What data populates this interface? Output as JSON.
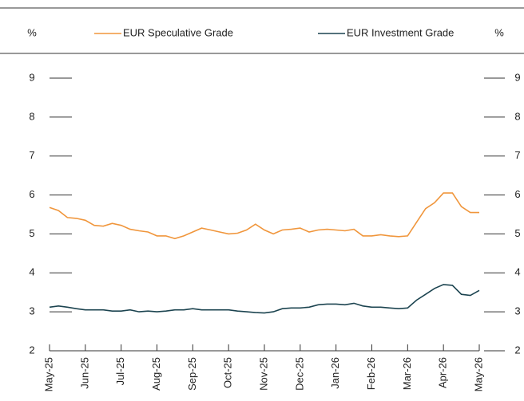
{
  "chart_data": {
    "type": "line",
    "ylabel": "%",
    "y2label": "%",
    "x": [
      0,
      0.25,
      0.5,
      0.75,
      1,
      1.25,
      1.5,
      1.75,
      2,
      2.25,
      2.5,
      2.75,
      3,
      3.25,
      3.5,
      3.75,
      4,
      4.25,
      4.5,
      4.75,
      5,
      5.25,
      5.5,
      5.75,
      6,
      6.25,
      6.5,
      6.75,
      7,
      7.25,
      7.5,
      7.75,
      8,
      8.25,
      8.5,
      8.75,
      9,
      9.25,
      9.5,
      9.75,
      10,
      10.25,
      10.5,
      10.75,
      11,
      11.25,
      11.5,
      11.75,
      12
    ],
    "xlim": [
      0,
      12
    ],
    "xticks": [
      {
        "value": 0,
        "label": "May-25"
      },
      {
        "value": 1,
        "label": "Jun-25"
      },
      {
        "value": 2,
        "label": "Jul-25"
      },
      {
        "value": 3,
        "label": "Aug-25"
      },
      {
        "value": 4,
        "label": "Sep-25"
      },
      {
        "value": 5,
        "label": "Oct-25"
      },
      {
        "value": 6,
        "label": "Nov-25"
      },
      {
        "value": 7,
        "label": "Dec-25"
      },
      {
        "value": 8,
        "label": "Jan-26"
      },
      {
        "value": 9,
        "label": "Feb-26"
      },
      {
        "value": 10,
        "label": "Mar-26"
      },
      {
        "value": 11,
        "label": "Apr-26"
      },
      {
        "value": 12,
        "label": "May-26"
      }
    ],
    "ylim": [
      2,
      9
    ],
    "yticks": [
      2,
      3,
      4,
      5,
      6,
      7,
      8,
      9
    ],
    "y2lim": [
      2,
      9
    ],
    "y2ticks": [
      2,
      3,
      4,
      5,
      6,
      7,
      8,
      9
    ],
    "series": [
      {
        "name": "EUR Speculative Grade",
        "color": "#f0963c",
        "values": [
          5.68,
          5.6,
          5.42,
          5.4,
          5.35,
          5.22,
          5.2,
          5.27,
          5.22,
          5.12,
          5.08,
          5.05,
          4.95,
          4.95,
          4.88,
          4.95,
          5.05,
          5.15,
          5.1,
          5.05,
          5.0,
          5.02,
          5.1,
          5.25,
          5.1,
          5.0,
          5.1,
          5.12,
          5.15,
          5.05,
          5.1,
          5.12,
          5.1,
          5.08,
          5.12,
          4.95,
          4.95,
          4.98,
          4.95,
          4.93,
          4.95,
          5.3,
          5.65,
          5.8,
          6.05,
          6.05,
          5.7,
          5.55,
          5.55
        ]
      },
      {
        "name": "EUR Investment Grade",
        "color": "#1c4450",
        "values": [
          3.12,
          3.15,
          3.12,
          3.08,
          3.05,
          3.05,
          3.05,
          3.02,
          3.02,
          3.05,
          3.0,
          3.02,
          3.0,
          3.02,
          3.05,
          3.05,
          3.08,
          3.05,
          3.05,
          3.05,
          3.05,
          3.02,
          3.0,
          2.98,
          2.97,
          3.0,
          3.08,
          3.1,
          3.1,
          3.12,
          3.18,
          3.2,
          3.2,
          3.18,
          3.22,
          3.15,
          3.12,
          3.12,
          3.1,
          3.08,
          3.1,
          3.3,
          3.45,
          3.6,
          3.7,
          3.68,
          3.45,
          3.42,
          3.55
        ]
      }
    ]
  }
}
